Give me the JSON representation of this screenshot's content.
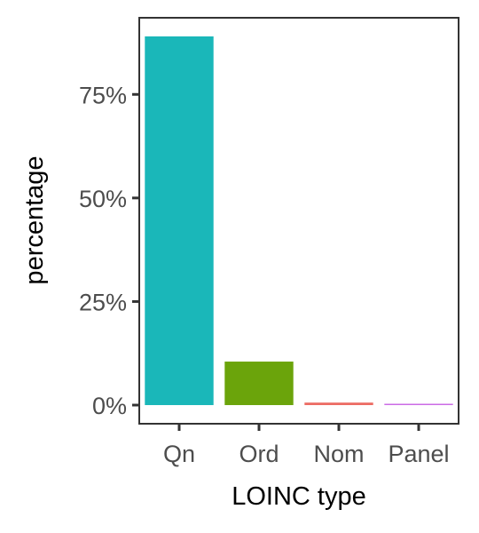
{
  "chart_data": {
    "type": "bar",
    "categories": [
      "Qn",
      "Ord",
      "Nom",
      "Panel"
    ],
    "values": [
      89,
      10.5,
      0.6,
      0.2
    ],
    "colors": [
      "#1ab7b9",
      "#6ba40b",
      "#ec6b63",
      "#cb6be6"
    ],
    "xlabel": "LOINC type",
    "ylabel": "percentage",
    "ylim": [
      -4.5,
      93.5
    ],
    "yticks": [
      0,
      25,
      50,
      75
    ],
    "ytick_labels": [
      "0%",
      "25%",
      "50%",
      "75%"
    ],
    "grid": false,
    "legend": "none"
  }
}
